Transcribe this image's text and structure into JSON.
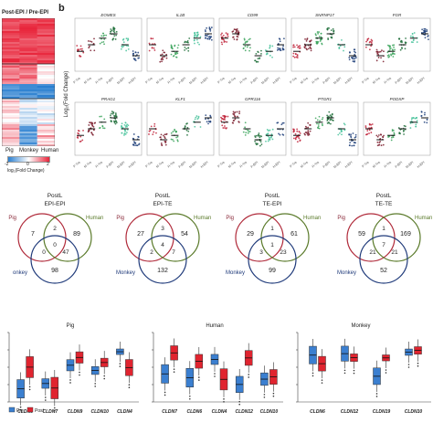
{
  "heatmap": {
    "header": "Post-EPI / Pre-EPI",
    "columns": [
      "Pig",
      "Monkey",
      "Human"
    ],
    "legend_ticks": [
      "-2",
      "0",
      "2"
    ],
    "legend_label": "log₂(Fold Change)",
    "colors": {
      "high": "#e8243a",
      "mid": "#ffffff",
      "low": "#2a7fd0"
    }
  },
  "panel_b": {
    "letter": "b",
    "ylabel": "Log₂(Fold Change)",
    "genes_row1": [
      "EOMES",
      "IL1B",
      "CD99",
      "SNRNP17",
      "FGR"
    ],
    "genes_row2": [
      "PRAG1",
      "KLF1",
      "GPR116",
      "PTGR1",
      "PODXP"
    ],
    "xcats": [
      "P-Tra",
      "M-Tra",
      "H-Tra",
      "P-EPI",
      "M-EPI",
      "H-EPI"
    ],
    "series_colors": [
      "#c0233a",
      "#7a1a2a",
      "#3aa35a",
      "#1f6e3a",
      "#46c29a",
      "#1f3f7a"
    ]
  },
  "venns": [
    {
      "title1": "PostL",
      "title2": "EPI-EPI",
      "pig": "7",
      "human": "89",
      "monkey": "98",
      "ph": "2",
      "pm": "0",
      "hm": "47",
      "center": "0"
    },
    {
      "title1": "PostL",
      "title2": "EPI-TE",
      "pig": "27",
      "human": "54",
      "monkey": "132",
      "ph": "3",
      "pm": "2",
      "hm": "7",
      "center": "4"
    },
    {
      "title1": "PostL",
      "title2": "TE-EPI",
      "pig": "29",
      "human": "61",
      "monkey": "99",
      "ph": "1",
      "pm": "3",
      "hm": "23",
      "center": "1"
    },
    {
      "title1": "PostL",
      "title2": "TE-TE",
      "pig": "59",
      "human": "169",
      "monkey": "52",
      "ph": "1",
      "pm": "21",
      "hm": "21",
      "center": "7"
    }
  ],
  "venn_labels": {
    "pig": "Pig",
    "human": "Human",
    "monkey": "Monkey",
    "pig_short": "Pig",
    "monkey_short": "onkey"
  },
  "boxplots": {
    "legend": {
      "pre": "Pre",
      "post": "Post"
    },
    "pre_color": "#3b7fd0",
    "post_color": "#e0242f",
    "panels": [
      {
        "title": "Pig",
        "genes": [
          "CLDN6",
          "CLDN7",
          "CLDN9",
          "CLDN10",
          "CLDN4"
        ]
      },
      {
        "title": "Human",
        "genes": [
          "CLDN7",
          "CLDN6",
          "CLDN4",
          "CLDN12",
          "CLDN10"
        ]
      },
      {
        "title": "Monkey",
        "genes": [
          "CLDN6",
          "CLDN12",
          "CLDN19",
          "CLDN10"
        ]
      }
    ]
  }
}
